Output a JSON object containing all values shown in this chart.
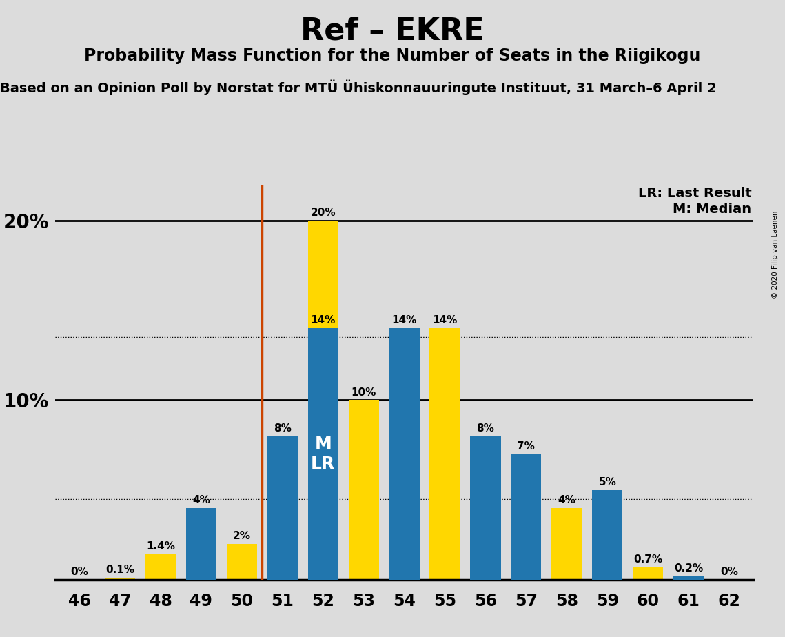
{
  "title": "Ref – EKRE",
  "subtitle": "Probability Mass Function for the Number of Seats in the Riigikogu",
  "sub2": "Based on an Opinion Poll by Norstat for MTÜ Ühiskonnauuringute Instituut, 31 March–6 April 2",
  "copyright": "© 2020 Filip van Laenen",
  "seats": [
    46,
    47,
    48,
    49,
    50,
    51,
    52,
    53,
    54,
    55,
    56,
    57,
    58,
    59,
    60,
    61,
    62
  ],
  "blue_values": [
    0.0,
    0.0,
    0.0,
    4.0,
    0.0,
    8.0,
    14.0,
    0.0,
    14.0,
    0.0,
    8.0,
    7.0,
    0.0,
    5.0,
    0.0,
    0.2,
    0.0
  ],
  "yellow_values": [
    0.0,
    0.1,
    1.4,
    0.0,
    2.0,
    0.0,
    20.0,
    10.0,
    0.0,
    14.0,
    0.0,
    0.0,
    4.0,
    0.0,
    0.7,
    0.0,
    0.0
  ],
  "blue_labels": [
    "",
    "",
    "",
    "4%",
    "",
    "8%",
    "14%",
    "",
    "14%",
    "",
    "8%",
    "7%",
    "",
    "5%",
    "",
    "0.2%",
    ""
  ],
  "yellow_labels": [
    "0%",
    "0.1%",
    "1.4%",
    "",
    "2%",
    "",
    "20%",
    "10%",
    "",
    "14%",
    "",
    "",
    "4%",
    "",
    "0.7%",
    "",
    "0%"
  ],
  "blue_color": "#2176ae",
  "yellow_color": "#FFD700",
  "background_color": "#dcdcdc",
  "median_seat": 52,
  "lr_seat": 51,
  "lr_line_color": "#cc4400",
  "ylim": [
    0,
    22
  ],
  "hline1": 10.0,
  "hline2": 20.0,
  "dotted1": 13.5,
  "dotted2": 4.5,
  "legend_lr": "LR: Last Result",
  "legend_m": "M: Median",
  "title_fontsize": 32,
  "subtitle_fontsize": 17,
  "sub2_fontsize": 14,
  "label_fontsize": 11,
  "tick_fontsize": 17,
  "ytick_fontsize": 20,
  "legend_fontsize": 14,
  "mlr_fontsize": 18,
  "copyright_fontsize": 7.5
}
